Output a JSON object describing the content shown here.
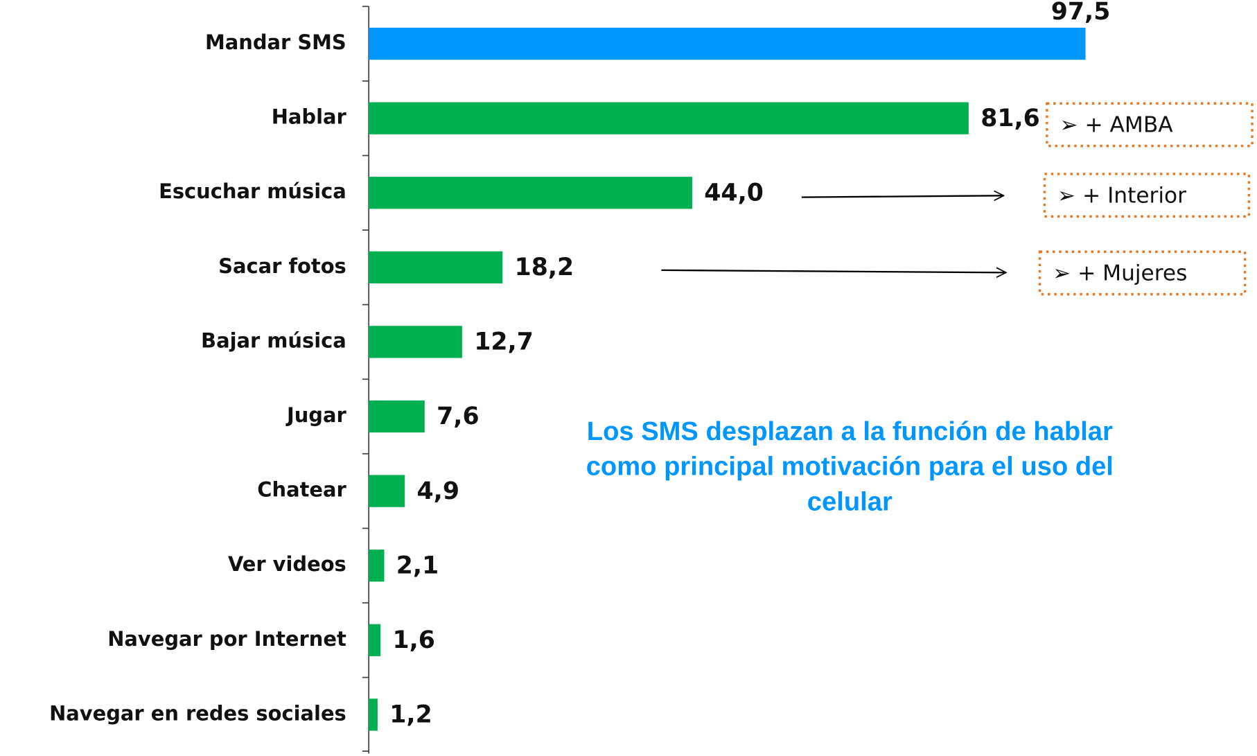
{
  "chart_data": {
    "type": "barh",
    "categories": [
      "Mandar SMS",
      "Hablar",
      "Escuchar música",
      "Sacar fotos",
      "Bajar música",
      "Jugar",
      "Chatear",
      "Ver videos",
      "Navegar por Internet",
      "Navegar en redes sociales"
    ],
    "values": [
      97.5,
      81.6,
      44.0,
      18.2,
      12.7,
      7.6,
      4.9,
      2.1,
      1.6,
      1.2
    ],
    "value_labels": [
      "97,5",
      "81,6",
      "44,0",
      "18,2",
      "12,7",
      "7,6",
      "4,9",
      "2,1",
      "1,6",
      "1,2"
    ],
    "colors": [
      "#0096ff",
      "#00b050",
      "#00b050",
      "#00b050",
      "#00b050",
      "#00b050",
      "#00b050",
      "#00b050",
      "#00b050",
      "#00b050"
    ],
    "annotation": [
      "Los SMS desplazan a la función de hablar",
      "como principal motivación para el uso del",
      "celular"
    ],
    "callouts": [
      "➢ + AMBA",
      "➢ + Interior",
      "➢ + Mujeres"
    ]
  }
}
